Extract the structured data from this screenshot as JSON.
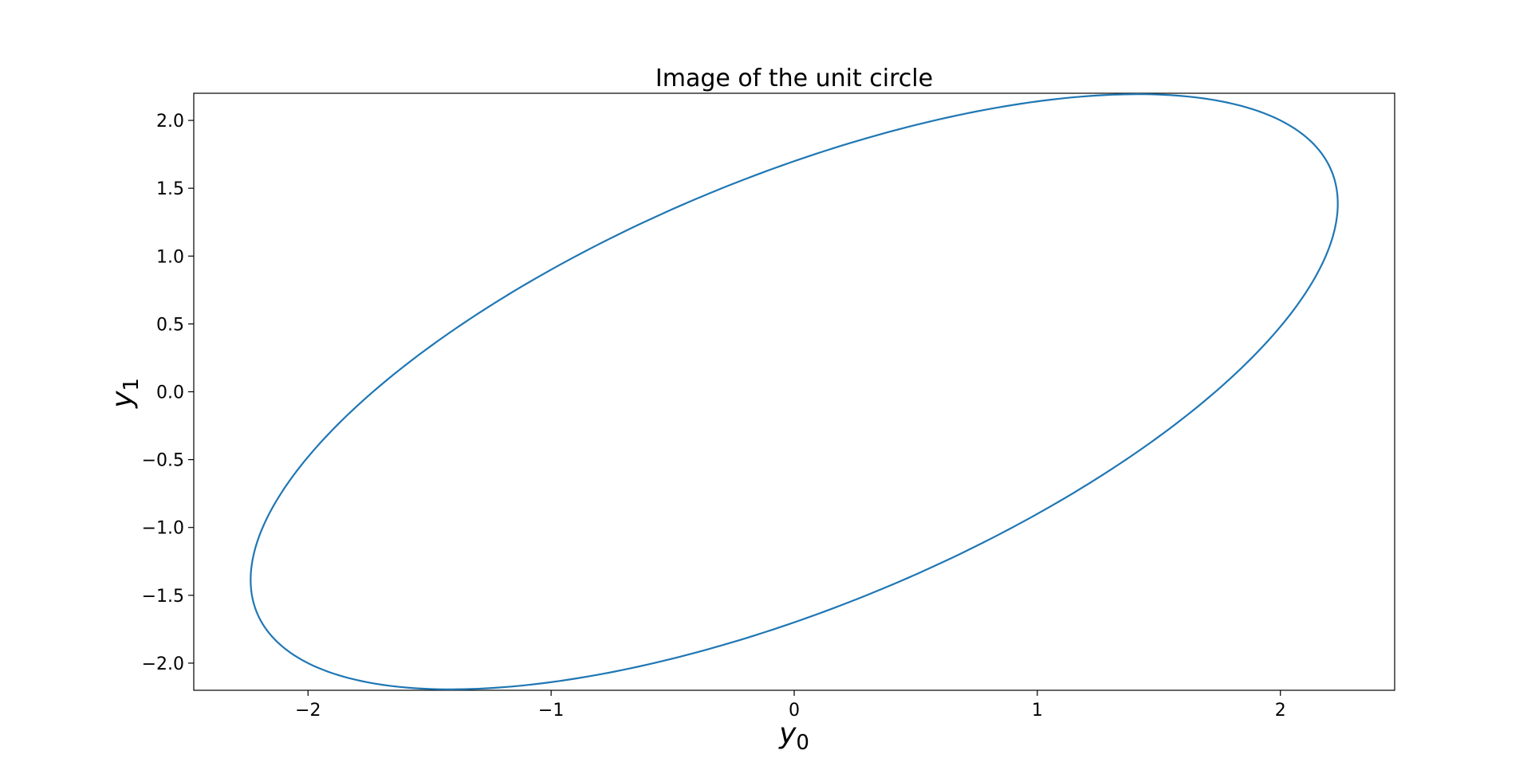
{
  "chart_data": {
    "type": "line",
    "title": "Image of the unit circle",
    "xlabel": {
      "base": "y",
      "subscript": "0"
    },
    "ylabel": {
      "base": "y",
      "subscript": "1"
    },
    "xlim": [
      -2.47,
      2.47
    ],
    "ylim": [
      -2.2,
      2.2
    ],
    "xticks": [
      -2,
      -1,
      0,
      1,
      2
    ],
    "xtick_labels": [
      "−2",
      "−1",
      "0",
      "1",
      "2"
    ],
    "yticks": [
      2.0,
      1.5,
      1.0,
      0.5,
      0.0,
      -0.5,
      -1.0,
      -1.5,
      -2.0
    ],
    "ytick_labels": [
      "2.0",
      "1.5",
      "1.0",
      "0.5",
      "0.0",
      "−0.5",
      "−1.0",
      "−1.5",
      "−2.0"
    ],
    "grid": false,
    "series": [
      {
        "color": "#1f77b4",
        "curve": "image of unit circle (x0, x1) = (cos t, sin t) under linear map",
        "matrix": [
          [
            2.0,
            1.0
          ],
          [
            2.0,
            -0.9
          ]
        ],
        "x": [
          2.0,
          2.22,
          1.98,
          1.5,
          0.81,
          0.0,
          -0.81,
          -1.5,
          -1.98,
          -2.22,
          -2.0,
          -1.5,
          -0.81,
          0.0,
          0.81,
          1.5,
          2.0
        ],
        "y": [
          2.0,
          1.74,
          1.39,
          0.96,
          0.47,
          -0.05,
          -0.57,
          -1.09,
          -1.57,
          -1.92,
          -2.0,
          -1.74,
          -1.39,
          -0.96,
          -0.47,
          0.05,
          2.0
        ]
      }
    ]
  }
}
